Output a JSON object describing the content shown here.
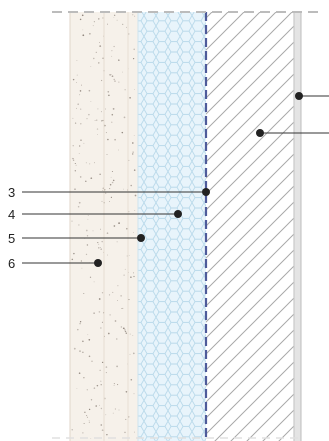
{
  "diagram": {
    "colors": {
      "background": "#ffffff",
      "render_layer": "#f6f1ea",
      "render_speckle": "#7a6f66",
      "insulation_layer": "#e8f4fb",
      "insulation_pattern": "#b9d9ea",
      "membrane": "#4e5b9a",
      "hatch_line": "#a9a9a9",
      "section_edge": "#c9c9c9",
      "leader": "#333333",
      "dot": "#222222"
    },
    "layers": [
      {
        "id": "render",
        "pattern": "speckled"
      },
      {
        "id": "insulation",
        "pattern": "honeycomb"
      },
      {
        "id": "membrane",
        "pattern": "dashed-line"
      },
      {
        "id": "substrate",
        "pattern": "diagonal-hatch"
      },
      {
        "id": "interior-finish",
        "pattern": "solid-strip"
      }
    ],
    "callouts": [
      {
        "id": "callout-1",
        "label": "",
        "side": "right"
      },
      {
        "id": "callout-2",
        "label": "",
        "side": "right"
      },
      {
        "id": "callout-3",
        "label": "3",
        "side": "left"
      },
      {
        "id": "callout-4",
        "label": "4",
        "side": "left"
      },
      {
        "id": "callout-5",
        "label": "5",
        "side": "left"
      },
      {
        "id": "callout-6",
        "label": "6",
        "side": "left"
      }
    ]
  }
}
